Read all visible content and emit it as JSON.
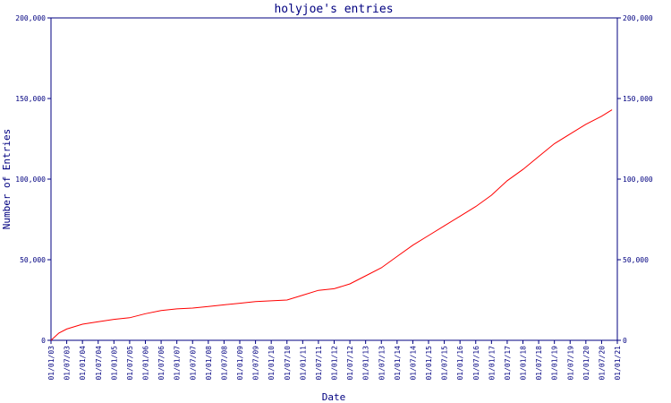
{
  "chart_data": {
    "type": "line",
    "title": "holyjoe's entries",
    "xlabel": "Date",
    "ylabel": "Number of Entries",
    "ylim": [
      0,
      200000
    ],
    "y_ticks": [
      {
        "value": 0,
        "label": "0"
      },
      {
        "value": 50000,
        "label": "50,000"
      },
      {
        "value": 100000,
        "label": "100,000"
      },
      {
        "value": 150000,
        "label": "150,000"
      },
      {
        "value": 200000,
        "label": "200,000"
      }
    ],
    "x_ticks": [
      "01/01/03",
      "01/07/03",
      "01/01/04",
      "01/07/04",
      "01/01/05",
      "01/07/05",
      "01/01/06",
      "01/07/06",
      "01/01/07",
      "01/07/07",
      "01/01/08",
      "01/07/08",
      "01/01/09",
      "01/07/09",
      "01/01/10",
      "01/07/10",
      "01/01/11",
      "01/07/11",
      "01/01/12",
      "01/07/12",
      "01/01/13",
      "01/07/13",
      "01/01/14",
      "01/07/14",
      "01/01/15",
      "01/07/15",
      "01/01/16",
      "01/07/16",
      "01/01/17",
      "01/07/17",
      "01/01/18",
      "01/07/18",
      "01/01/19",
      "01/07/19",
      "01/01/20",
      "01/07/20",
      "01/01/21"
    ],
    "series": [
      {
        "color": "#ff0000",
        "x": [
          "01/01/03",
          "01/04/03",
          "01/07/03",
          "01/01/04",
          "01/07/04",
          "01/01/05",
          "01/07/05",
          "01/01/06",
          "01/07/06",
          "01/01/07",
          "01/07/07",
          "01/01/08",
          "01/07/08",
          "01/01/09",
          "01/07/09",
          "01/01/10",
          "01/07/10",
          "01/01/11",
          "01/07/11",
          "01/01/12",
          "01/07/12",
          "01/01/13",
          "01/07/13",
          "01/01/14",
          "01/07/14",
          "01/01/15",
          "01/07/15",
          "01/01/16",
          "01/07/16",
          "01/01/17",
          "01/07/17",
          "01/01/18",
          "01/07/18",
          "01/01/19",
          "01/07/19",
          "01/01/20",
          "01/07/20",
          "01/11/20"
        ],
        "y": [
          0,
          4500,
          7000,
          10000,
          11500,
          13000,
          14000,
          16500,
          18500,
          19500,
          20000,
          21000,
          22000,
          23000,
          24000,
          24500,
          25000,
          28000,
          31000,
          32000,
          35000,
          40000,
          45000,
          52000,
          59000,
          65000,
          71000,
          77000,
          83000,
          90000,
          99000,
          106000,
          114000,
          122000,
          128000,
          134000,
          139000,
          143000
        ]
      }
    ],
    "grid": false,
    "legend": "none"
  }
}
